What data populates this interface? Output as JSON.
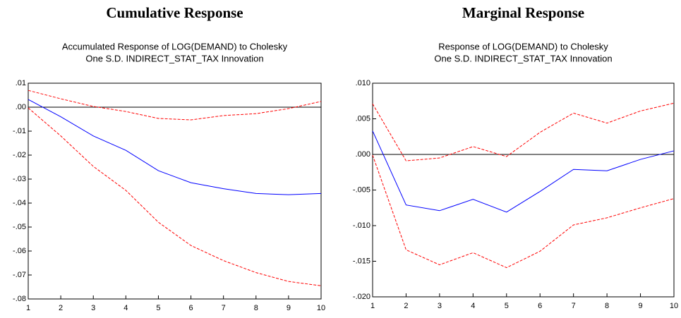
{
  "chart_data": [
    {
      "type": "line",
      "title": "Cumulative Response",
      "subtitle": [
        "Accumulated Response of LOG(DEMAND) to Cholesky",
        "One S.D. INDIRECT_STAT_TAX Innovation"
      ],
      "x": [
        1,
        2,
        3,
        4,
        5,
        6,
        7,
        8,
        9,
        10
      ],
      "xlim": [
        1,
        10
      ],
      "xticks": [
        1,
        2,
        3,
        4,
        5,
        6,
        7,
        8,
        9,
        10
      ],
      "ylim": [
        -0.08,
        0.01
      ],
      "yticks": [
        {
          "value": 0.01,
          "label": ".01"
        },
        {
          "value": 0,
          "label": ".00"
        },
        {
          "value": -0.01,
          "label": "-.01"
        },
        {
          "value": -0.02,
          "label": "-.02"
        },
        {
          "value": -0.03,
          "label": "-.03"
        },
        {
          "value": -0.04,
          "label": "-.04"
        },
        {
          "value": -0.05,
          "label": "-.05"
        },
        {
          "value": -0.06,
          "label": "-.06"
        },
        {
          "value": -0.07,
          "label": "-.07"
        },
        {
          "value": -0.08,
          "label": "-.08"
        }
      ],
      "series": [
        {
          "color": "#0000ff",
          "dashed": false,
          "values": [
            0.0032,
            -0.004,
            -0.012,
            -0.018,
            -0.0265,
            -0.0315,
            -0.034,
            -0.036,
            -0.0365,
            -0.036
          ]
        },
        {
          "color": "#ff0000",
          "dashed": true,
          "values": [
            0.007,
            0.0035,
            0.0003,
            -0.0018,
            -0.0047,
            -0.0053,
            -0.0035,
            -0.0027,
            -0.0006,
            0.0024
          ]
        },
        {
          "color": "#ff0000",
          "dashed": true,
          "values": [
            -0.0003,
            -0.012,
            -0.0247,
            -0.0347,
            -0.048,
            -0.0577,
            -0.064,
            -0.069,
            -0.0727,
            -0.0745
          ]
        }
      ]
    },
    {
      "type": "line",
      "title": "Marginal Response",
      "subtitle": [
        "Response of LOG(DEMAND) to Cholesky",
        "One S.D. INDIRECT_STAT_TAX Innovation"
      ],
      "x": [
        1,
        2,
        3,
        4,
        5,
        6,
        7,
        8,
        9,
        10
      ],
      "xlim": [
        1,
        10
      ],
      "xticks": [
        1,
        2,
        3,
        4,
        5,
        6,
        7,
        8,
        9,
        10
      ],
      "ylim": [
        -0.02,
        0.01
      ],
      "yticks": [
        {
          "value": 0.01,
          "label": ".010"
        },
        {
          "value": 0.005,
          "label": ".005"
        },
        {
          "value": 0,
          "label": ".000"
        },
        {
          "value": -0.005,
          "label": "-.005"
        },
        {
          "value": -0.01,
          "label": "-.010"
        },
        {
          "value": -0.015,
          "label": "-.015"
        },
        {
          "value": -0.02,
          "label": "-.020"
        }
      ],
      "series": [
        {
          "color": "#0000ff",
          "dashed": false,
          "values": [
            0.0033,
            -0.0071,
            -0.0079,
            -0.0063,
            -0.0081,
            -0.0052,
            -0.0021,
            -0.0023,
            -0.0007,
            0.0005
          ]
        },
        {
          "color": "#ff0000",
          "dashed": true,
          "values": [
            0.0071,
            -0.0009,
            -0.0005,
            0.0011,
            -0.0003,
            0.0031,
            0.0058,
            0.0044,
            0.0061,
            0.0072
          ]
        },
        {
          "color": "#ff0000",
          "dashed": true,
          "values": [
            -0.0001,
            -0.0134,
            -0.0155,
            -0.0138,
            -0.0159,
            -0.0136,
            -0.0099,
            -0.0089,
            -0.0075,
            -0.0062
          ]
        }
      ]
    }
  ]
}
